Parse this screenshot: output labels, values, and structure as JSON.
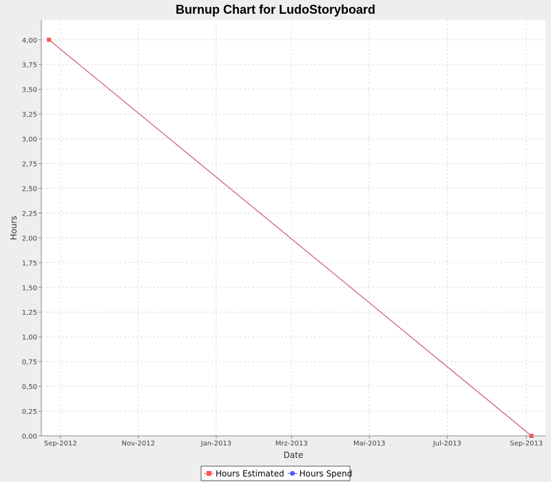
{
  "chart_data": {
    "type": "line",
    "title": "Burnup Chart for LudoStoryboard",
    "xlabel": "Date",
    "ylabel": "Hours",
    "xlim": [
      "2012-08-17",
      "2013-09-16"
    ],
    "ylim": [
      0,
      4.2
    ],
    "x_ticks": [
      {
        "date": "2012-09-01",
        "label": "Sep-2012"
      },
      {
        "date": "2012-11-01",
        "label": "Nov-2012"
      },
      {
        "date": "2013-01-01",
        "label": "Jan-2013"
      },
      {
        "date": "2013-03-01",
        "label": "Mrz-2013"
      },
      {
        "date": "2013-05-01",
        "label": "Mai-2013"
      },
      {
        "date": "2013-07-01",
        "label": "Jul-2013"
      },
      {
        "date": "2013-09-01",
        "label": "Sep-2013"
      }
    ],
    "y_ticks": [
      {
        "value": 0.0,
        "label": "0,00"
      },
      {
        "value": 0.25,
        "label": "0,25"
      },
      {
        "value": 0.5,
        "label": "0,50"
      },
      {
        "value": 0.75,
        "label": "0,75"
      },
      {
        "value": 1.0,
        "label": "1,00"
      },
      {
        "value": 1.25,
        "label": "1,25"
      },
      {
        "value": 1.5,
        "label": "1,50"
      },
      {
        "value": 1.75,
        "label": "1,75"
      },
      {
        "value": 2.0,
        "label": "2,00"
      },
      {
        "value": 2.25,
        "label": "2,25"
      },
      {
        "value": 2.5,
        "label": "2,50"
      },
      {
        "value": 2.75,
        "label": "2,75"
      },
      {
        "value": 3.0,
        "label": "3,00"
      },
      {
        "value": 3.25,
        "label": "3,25"
      },
      {
        "value": 3.5,
        "label": "3,50"
      },
      {
        "value": 3.75,
        "label": "3,75"
      },
      {
        "value": 4.0,
        "label": "4,00"
      }
    ],
    "grid": true,
    "legend_position": "bottom-center",
    "series": [
      {
        "name": "Hours Estimated",
        "color": "#ff5555",
        "line_color": "#cc5577",
        "marker": "square",
        "points": [
          {
            "x": "2012-08-23",
            "y": 4.0
          },
          {
            "x": "2013-09-05",
            "y": 0.0
          }
        ]
      },
      {
        "name": "Hours Spend",
        "color": "#5555ff",
        "marker": "circle",
        "points": []
      }
    ]
  }
}
